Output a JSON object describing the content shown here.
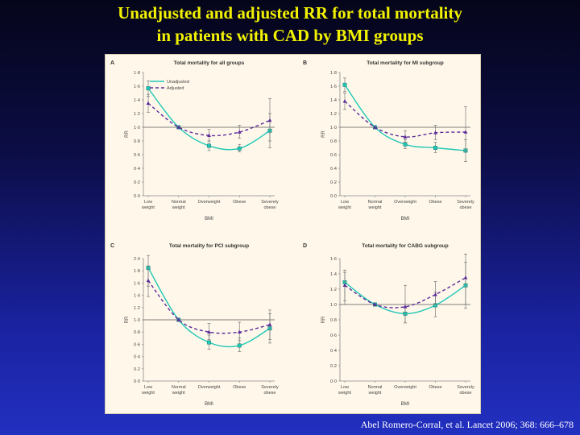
{
  "slide": {
    "title_line1": "Unadjusted and adjusted RR for total mortality",
    "title_line2": "in patients with CAD by BMI groups",
    "citation": "Abel Romero-Corral, et al. Lancet 2006; 368: 666–678"
  },
  "colors": {
    "unadjusted": "#22c8b6",
    "adjusted": "#5b2a9a",
    "axis": "#888888"
  },
  "chart_data": [
    {
      "type": "line",
      "panel_letter": "A",
      "title": "Total mortality for all groups",
      "xlabel": "BMI",
      "ylabel": "RR",
      "categories": [
        "Low weight",
        "Normal weight",
        "Overweight",
        "Obese",
        "Severely obese"
      ],
      "ylim": [
        0,
        1.8
      ],
      "yticks": [
        "0·0",
        "0·2",
        "0·4",
        "0·6",
        "0·8",
        "1·0",
        "1·2",
        "1·4",
        "1·6",
        "1·8"
      ],
      "legend": "top-left",
      "series": [
        {
          "name": "Unadjusted",
          "values": [
            1.57,
            1.0,
            0.73,
            0.69,
            0.95
          ],
          "err_low": [
            1.45,
            1.0,
            0.66,
            0.64,
            0.7
          ],
          "err_high": [
            1.68,
            1.0,
            0.8,
            0.75,
            1.2
          ]
        },
        {
          "name": "Adjusted",
          "values": [
            1.35,
            1.0,
            0.88,
            0.93,
            1.1
          ],
          "err_low": [
            1.22,
            1.0,
            0.8,
            0.84,
            0.8
          ],
          "err_high": [
            1.48,
            1.0,
            0.97,
            1.03,
            1.42
          ]
        }
      ]
    },
    {
      "type": "line",
      "panel_letter": "B",
      "title": "Total mortality for MI subgroup",
      "xlabel": "BMI",
      "ylabel": "RR",
      "categories": [
        "Low weight",
        "Normal weight",
        "Overweight",
        "Obese",
        "Severely obese"
      ],
      "ylim": [
        0,
        1.8
      ],
      "yticks": [
        "0·0",
        "0·2",
        "0·4",
        "0·6",
        "0·8",
        "1·0",
        "1·2",
        "1·4",
        "1·6",
        "1·8"
      ],
      "series": [
        {
          "name": "Unadjusted",
          "values": [
            1.62,
            1.0,
            0.75,
            0.7,
            0.66
          ],
          "err_low": [
            1.52,
            1.0,
            0.69,
            0.63,
            0.5
          ],
          "err_high": [
            1.72,
            1.0,
            0.82,
            0.78,
            0.82
          ]
        },
        {
          "name": "Adjusted",
          "values": [
            1.38,
            1.0,
            0.86,
            0.92,
            0.93
          ],
          "err_low": [
            1.26,
            1.0,
            0.78,
            0.82,
            0.65
          ],
          "err_high": [
            1.5,
            1.0,
            0.95,
            1.03,
            1.3
          ]
        }
      ]
    },
    {
      "type": "line",
      "panel_letter": "C",
      "title": "Total mortality for PCI subgroup",
      "xlabel": "BMI",
      "ylabel": "RR",
      "categories": [
        "Low weight",
        "Normal weight",
        "Overweight",
        "Obese",
        "Severely obese"
      ],
      "ylim": [
        0,
        2.0
      ],
      "yticks": [
        "0·0",
        "0·2",
        "0·4",
        "0·6",
        "0·8",
        "1·0",
        "1·2",
        "1·4",
        "1·6",
        "1·8",
        "2·0"
      ],
      "series": [
        {
          "name": "Unadjusted",
          "values": [
            1.85,
            1.0,
            0.63,
            0.58,
            0.86
          ],
          "err_low": [
            1.55,
            1.0,
            0.52,
            0.48,
            0.62
          ],
          "err_high": [
            2.05,
            1.0,
            0.75,
            0.7,
            1.1
          ]
        },
        {
          "name": "Adjusted",
          "values": [
            1.64,
            1.0,
            0.8,
            0.8,
            0.92
          ],
          "err_low": [
            1.38,
            1.0,
            0.68,
            0.66,
            0.68
          ],
          "err_high": [
            1.88,
            1.0,
            0.94,
            0.96,
            1.16
          ]
        }
      ]
    },
    {
      "type": "line",
      "panel_letter": "D",
      "title": "Total mortality for CABG subgroup",
      "xlabel": "BMI",
      "ylabel": "RR",
      "categories": [
        "Low weight",
        "Normal weight",
        "Overweight",
        "Obese",
        "Severely obese"
      ],
      "ylim": [
        0,
        1.6
      ],
      "yticks": [
        "0·0",
        "0·2",
        "0·4",
        "0·6",
        "0·8",
        "1·0",
        "1·2",
        "1·4",
        "1·6"
      ],
      "series": [
        {
          "name": "Unadjusted",
          "values": [
            1.29,
            1.0,
            0.88,
            0.99,
            1.25
          ],
          "err_low": [
            1.05,
            1.0,
            0.76,
            0.84,
            0.95
          ],
          "err_high": [
            1.42,
            1.0,
            1.0,
            1.16,
            1.55
          ]
        },
        {
          "name": "Adjusted",
          "values": [
            1.25,
            1.0,
            0.97,
            1.13,
            1.35
          ],
          "err_low": [
            1.0,
            1.0,
            0.76,
            1.0,
            1.0
          ],
          "err_high": [
            1.45,
            1.0,
            1.25,
            1.3,
            1.66
          ]
        }
      ]
    }
  ]
}
